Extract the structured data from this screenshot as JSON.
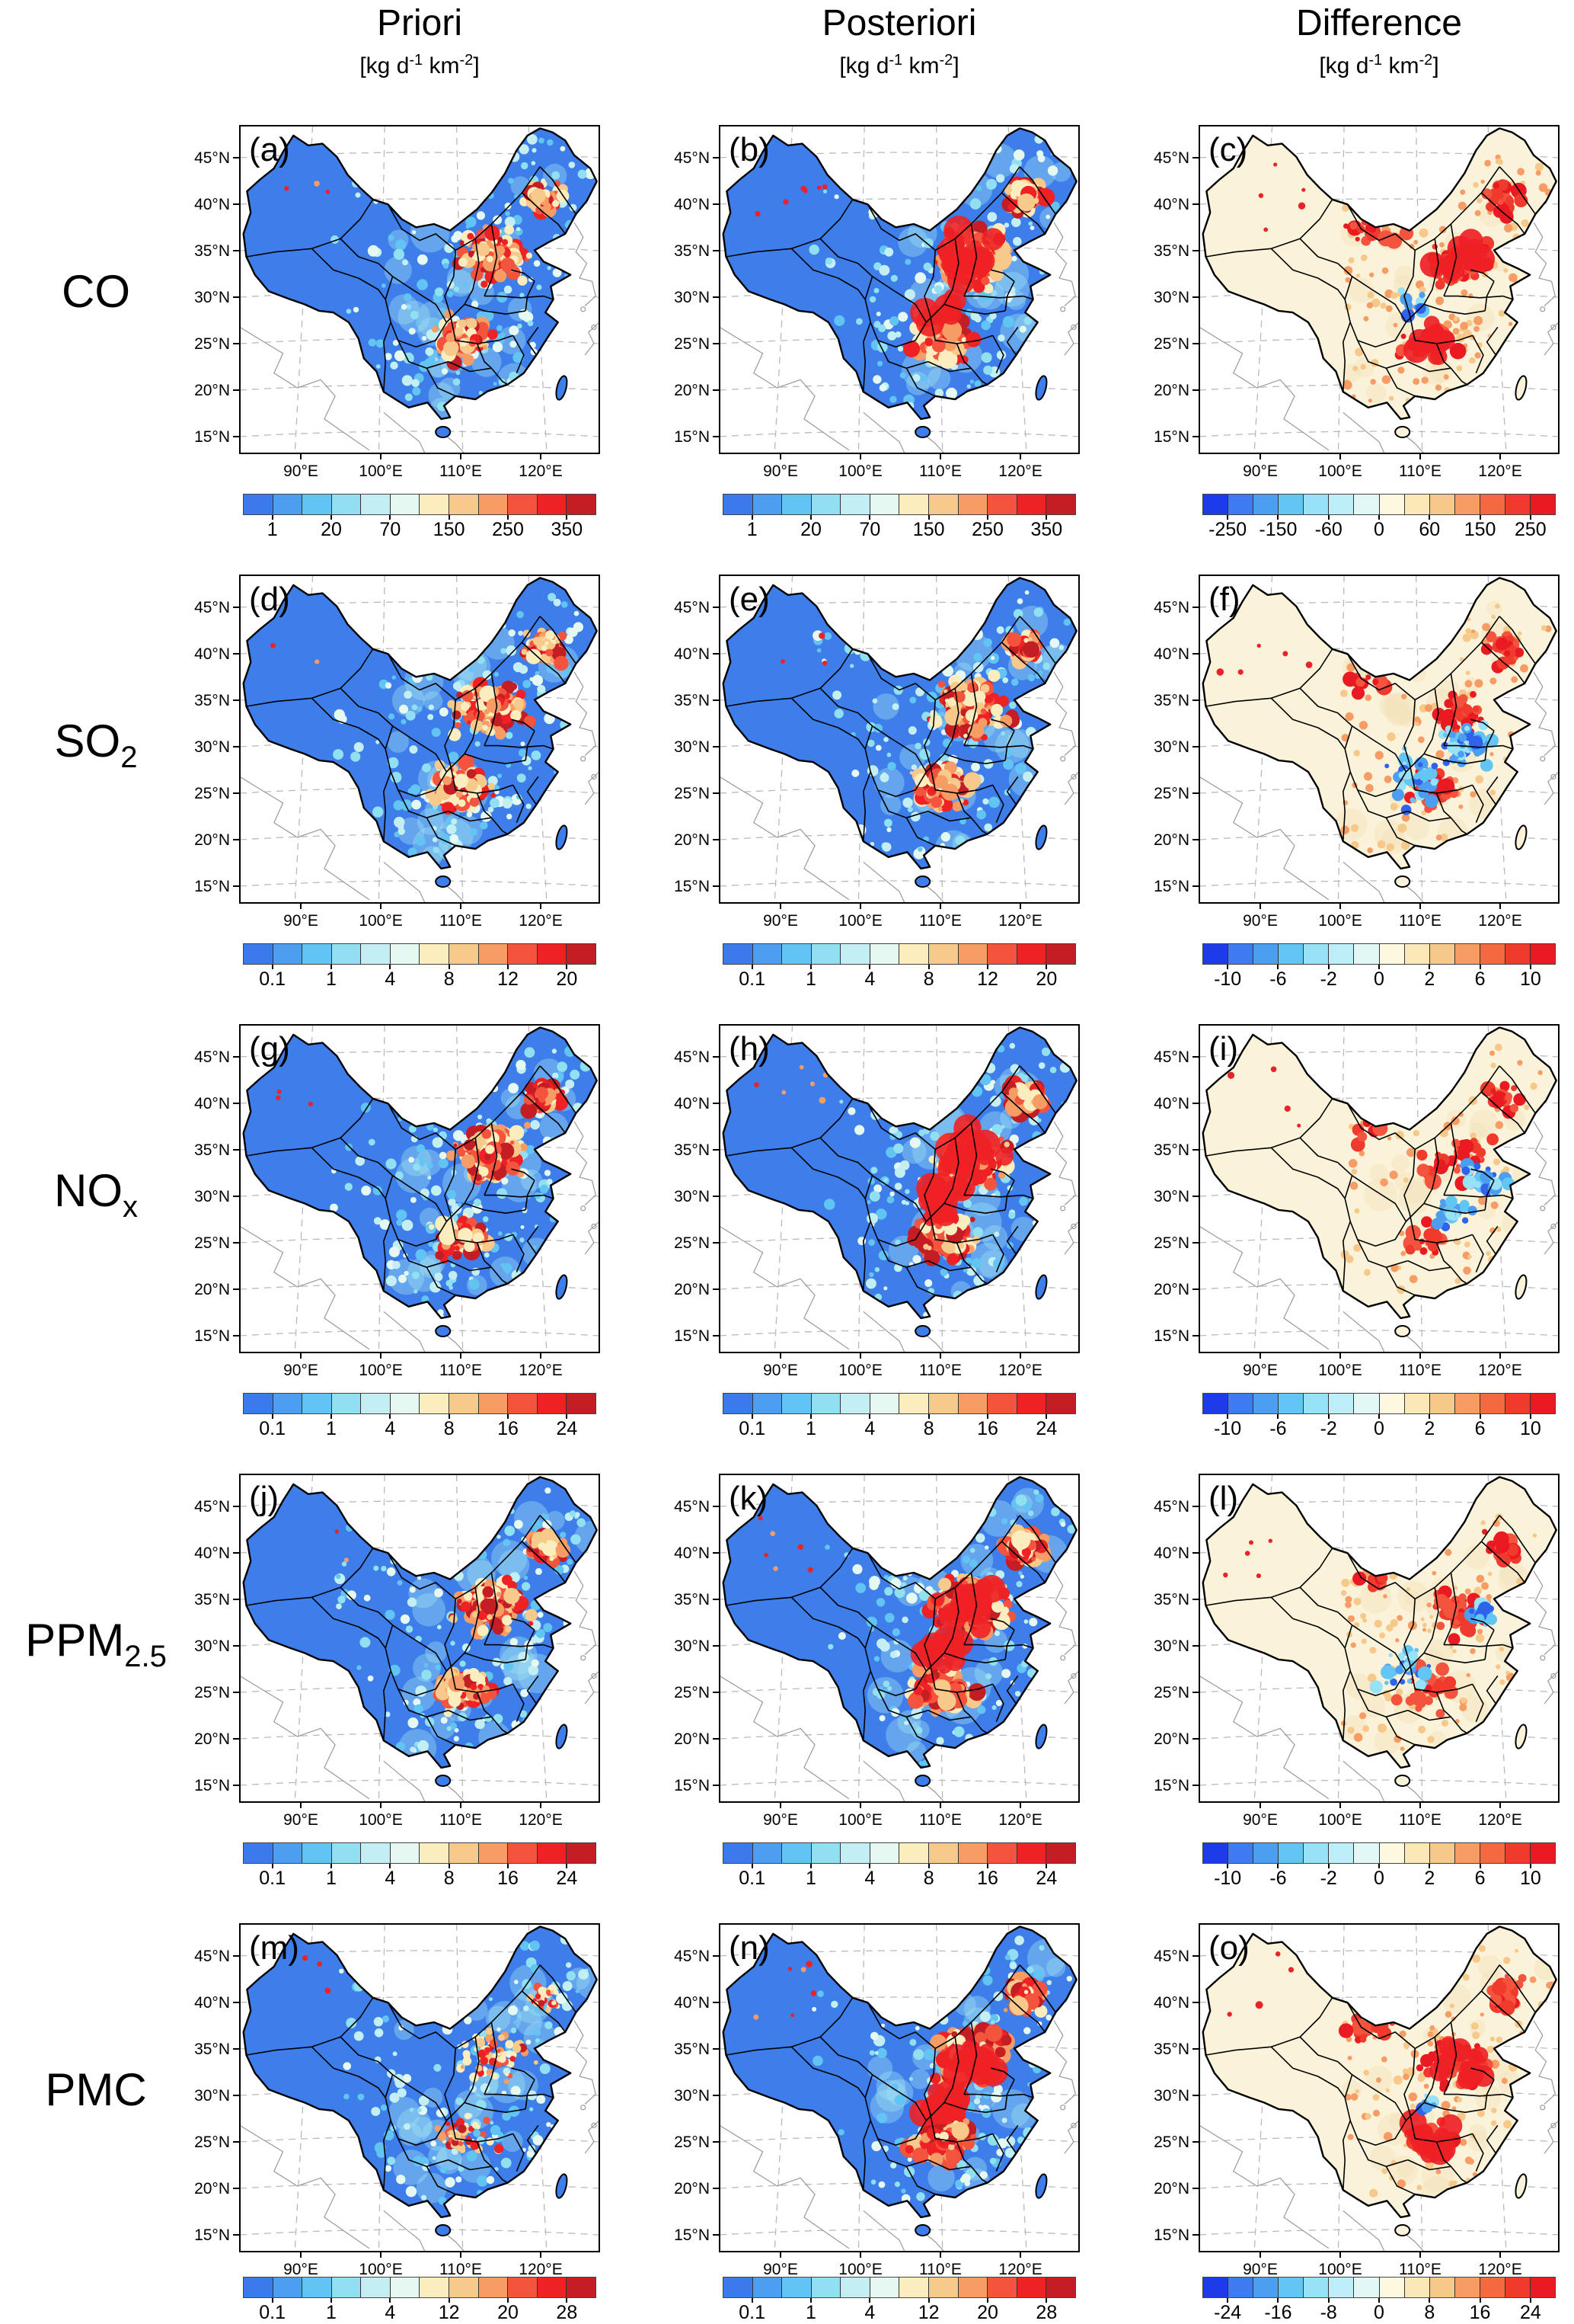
{
  "figure": {
    "units_parts": [
      "[kg d",
      "-1",
      " km",
      "-2",
      "]"
    ],
    "columns": [
      {
        "title": "Priori"
      },
      {
        "title": "Posteriori"
      },
      {
        "title": "Difference"
      }
    ],
    "rows": [
      {
        "label": "CO",
        "label_sub": "",
        "panels": [
          {
            "letter": "(a)",
            "kind": "priori",
            "colorbar": {
              "scale": "scale12",
              "labels": [
                "1",
                "20",
                "70",
                "150",
                "250",
                "350"
              ]
            }
          },
          {
            "letter": "(b)",
            "kind": "posteriori",
            "colorbar": {
              "scale": "scale12",
              "labels": [
                "1",
                "20",
                "70",
                "150",
                "250",
                "350"
              ]
            }
          },
          {
            "letter": "(c)",
            "kind": "difference",
            "colorbar": {
              "scale": "scale14",
              "labels": [
                "-250",
                "-150",
                "-60",
                "0",
                "60",
                "150",
                "250"
              ]
            }
          }
        ]
      },
      {
        "label": "SO",
        "label_sub": "2",
        "panels": [
          {
            "letter": "(d)",
            "kind": "priori",
            "colorbar": {
              "scale": "scale12",
              "labels": [
                "0.1",
                "1",
                "4",
                "8",
                "12",
                "20"
              ]
            }
          },
          {
            "letter": "(e)",
            "kind": "posteriori",
            "colorbar": {
              "scale": "scale12",
              "labels": [
                "0.1",
                "1",
                "4",
                "8",
                "12",
                "20"
              ]
            }
          },
          {
            "letter": "(f)",
            "kind": "difference",
            "colorbar": {
              "scale": "scale14",
              "labels": [
                "-10",
                "-6",
                "-2",
                "0",
                "2",
                "6",
                "10"
              ]
            }
          }
        ]
      },
      {
        "label": "NO",
        "label_sub": "x",
        "panels": [
          {
            "letter": "(g)",
            "kind": "priori",
            "colorbar": {
              "scale": "scale12",
              "labels": [
                "0.1",
                "1",
                "4",
                "8",
                "16",
                "24"
              ]
            }
          },
          {
            "letter": "(h)",
            "kind": "posteriori",
            "colorbar": {
              "scale": "scale12",
              "labels": [
                "0.1",
                "1",
                "4",
                "8",
                "16",
                "24"
              ]
            }
          },
          {
            "letter": "(i)",
            "kind": "difference",
            "colorbar": {
              "scale": "scale14",
              "labels": [
                "-10",
                "-6",
                "-2",
                "0",
                "2",
                "6",
                "10"
              ]
            }
          }
        ]
      },
      {
        "label": "PPM",
        "label_sub": "2.5",
        "panels": [
          {
            "letter": "(j)",
            "kind": "priori",
            "colorbar": {
              "scale": "scale12",
              "labels": [
                "0.1",
                "1",
                "4",
                "8",
                "16",
                "24"
              ]
            }
          },
          {
            "letter": "(k)",
            "kind": "posteriori",
            "colorbar": {
              "scale": "scale12",
              "labels": [
                "0.1",
                "1",
                "4",
                "8",
                "16",
                "24"
              ]
            }
          },
          {
            "letter": "(l)",
            "kind": "difference",
            "colorbar": {
              "scale": "scale14",
              "labels": [
                "-10",
                "-6",
                "-2",
                "0",
                "2",
                "6",
                "10"
              ]
            }
          }
        ]
      },
      {
        "label": "PMC",
        "label_sub": "",
        "panels": [
          {
            "letter": "(m)",
            "kind": "priori",
            "colorbar": {
              "scale": "scale12",
              "labels": [
                "0.1",
                "1",
                "4",
                "12",
                "20",
                "28"
              ]
            }
          },
          {
            "letter": "(n)",
            "kind": "posteriori",
            "colorbar": {
              "scale": "scale12",
              "labels": [
                "0.1",
                "1",
                "4",
                "12",
                "20",
                "28"
              ]
            }
          },
          {
            "letter": "(o)",
            "kind": "difference",
            "colorbar": {
              "scale": "scale14",
              "labels": [
                "-24",
                "-16",
                "-8",
                "0",
                "8",
                "16",
                "24"
              ]
            }
          }
        ]
      }
    ]
  },
  "axes": {
    "lat_ticks": [
      "45°N",
      "40°N",
      "35°N",
      "30°N",
      "25°N",
      "20°N",
      "15°N"
    ],
    "lon_ticks": [
      "90°E",
      "100°E",
      "110°E",
      "120°E"
    ]
  },
  "colors": {
    "scale12": [
      "#3B7AEC",
      "#4D9EF0",
      "#62C4F2",
      "#90E0F2",
      "#C3EFF4",
      "#E6F8F2",
      "#FBEDBE",
      "#F7C98A",
      "#F79C64",
      "#F4543E",
      "#EE2125",
      "#C41E24"
    ],
    "scale14": [
      "#1D3BE8",
      "#3D7BF2",
      "#4C9EF0",
      "#63C5F4",
      "#97E2F6",
      "#BEEFF8",
      "#E2F8F6",
      "#FDF8E0",
      "#FAE9B6",
      "#F6C88A",
      "#F79C64",
      "#F4693F",
      "#F03A2D",
      "#E91A22"
    ],
    "china_base_emission": "#3D7EEA",
    "china_base_difference": "#FAF3DA",
    "boundary": "#000000",
    "graticule": "#B9B9B9",
    "foreign_coast": "#9A9A9A",
    "background": "#FFFFFF"
  },
  "chart_data": {
    "type": "heatmap",
    "subtype": "gridded-emission-maps-of-china",
    "grid": "5 rows x 3 columns",
    "columns": [
      "Priori",
      "Posteriori",
      "Difference"
    ],
    "rows": [
      "CO",
      "SO2",
      "NOx",
      "PPM2.5",
      "PMC"
    ],
    "units": "kg d^-1 km^-2",
    "panel_letters": [
      "(a)",
      "(b)",
      "(c)",
      "(d)",
      "(e)",
      "(f)",
      "(g)",
      "(h)",
      "(i)",
      "(j)",
      "(k)",
      "(l)",
      "(m)",
      "(n)",
      "(o)"
    ],
    "x_axis": {
      "label": "longitude",
      "ticks": [
        "90°E",
        "100°E",
        "110°E",
        "120°E"
      ]
    },
    "y_axis": {
      "label": "latitude",
      "ticks": [
        "45°N",
        "40°N",
        "35°N",
        "30°N",
        "25°N",
        "20°N",
        "15°N"
      ]
    },
    "colorbar_ticks": {
      "CO": {
        "priori_posteriori": [
          1,
          20,
          70,
          150,
          250,
          350
        ],
        "difference": [
          -250,
          -150,
          -60,
          0,
          60,
          150,
          250
        ]
      },
      "SO2": {
        "priori_posteriori": [
          0.1,
          1,
          4,
          8,
          12,
          20
        ],
        "difference": [
          -10,
          -6,
          -2,
          0,
          2,
          6,
          10
        ]
      },
      "NOx": {
        "priori_posteriori": [
          0.1,
          1,
          4,
          8,
          16,
          24
        ],
        "difference": [
          -10,
          -6,
          -2,
          0,
          2,
          6,
          10
        ]
      },
      "PPM2.5": {
        "priori_posteriori": [
          0.1,
          1,
          4,
          8,
          16,
          24
        ],
        "difference": [
          -10,
          -6,
          -2,
          0,
          2,
          6,
          10
        ]
      },
      "PMC": {
        "priori_posteriori": [
          0.1,
          1,
          4,
          12,
          20,
          28
        ],
        "difference": [
          -24,
          -16,
          -8,
          0,
          8,
          16,
          24
        ]
      }
    },
    "legend_position": "below each panel",
    "grid_lines": "dashed gray graticule"
  }
}
